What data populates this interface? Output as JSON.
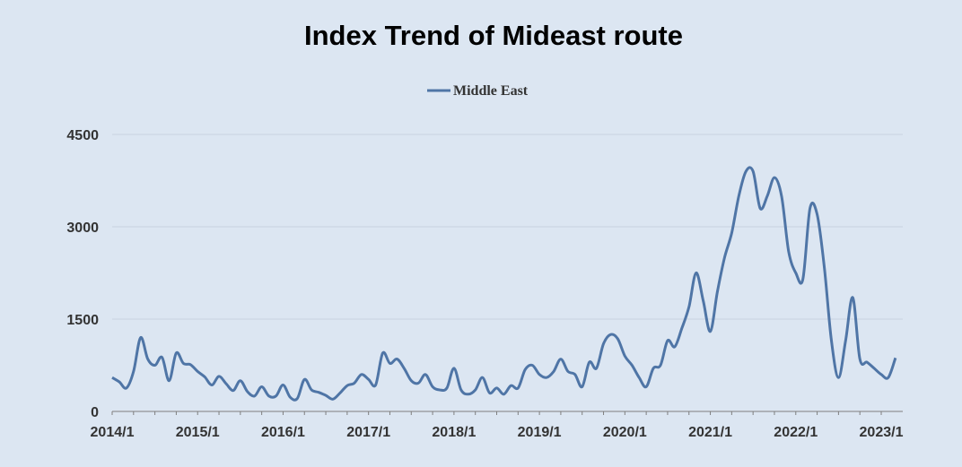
{
  "chart_data": {
    "type": "line",
    "title": "Index Trend of Mideast route",
    "xlabel": "",
    "ylabel": "",
    "ylim": [
      0,
      4500
    ],
    "y_ticks": [
      0,
      1500,
      3000,
      4500
    ],
    "x_ticks": [
      "2014/1",
      "2015/1",
      "2016/1",
      "2017/1",
      "2018/1",
      "2019/1",
      "2020/1",
      "2021/1",
      "2022/1",
      "2023/1"
    ],
    "grid": "horizontal",
    "legend": "top-center",
    "series": [
      {
        "name": "Middle East",
        "color": "#4f75a6",
        "x": [
          "2014-01",
          "2014-02",
          "2014-03",
          "2014-04",
          "2014-05",
          "2014-06",
          "2014-07",
          "2014-08",
          "2014-09",
          "2014-10",
          "2014-11",
          "2014-12",
          "2015-01",
          "2015-02",
          "2015-03",
          "2015-04",
          "2015-05",
          "2015-06",
          "2015-07",
          "2015-08",
          "2015-09",
          "2015-10",
          "2015-11",
          "2015-12",
          "2016-01",
          "2016-02",
          "2016-03",
          "2016-04",
          "2016-05",
          "2016-06",
          "2016-07",
          "2016-08",
          "2016-09",
          "2016-10",
          "2016-11",
          "2016-12",
          "2017-01",
          "2017-02",
          "2017-03",
          "2017-04",
          "2017-05",
          "2017-06",
          "2017-07",
          "2017-08",
          "2017-09",
          "2017-10",
          "2017-11",
          "2017-12",
          "2018-01",
          "2018-02",
          "2018-03",
          "2018-04",
          "2018-05",
          "2018-06",
          "2018-07",
          "2018-08",
          "2018-09",
          "2018-10",
          "2018-11",
          "2018-12",
          "2019-01",
          "2019-02",
          "2019-03",
          "2019-04",
          "2019-05",
          "2019-06",
          "2019-07",
          "2019-08",
          "2019-09",
          "2019-10",
          "2019-11",
          "2019-12",
          "2020-01",
          "2020-02",
          "2020-03",
          "2020-04",
          "2020-05",
          "2020-06",
          "2020-07",
          "2020-08",
          "2020-09",
          "2020-10",
          "2020-11",
          "2020-12",
          "2021-01",
          "2021-02",
          "2021-03",
          "2021-04",
          "2021-05",
          "2021-06",
          "2021-07",
          "2021-08",
          "2021-09",
          "2021-10",
          "2021-11",
          "2021-12",
          "2022-01",
          "2022-02",
          "2022-03",
          "2022-04",
          "2022-05",
          "2022-06",
          "2022-07",
          "2022-08",
          "2022-09",
          "2022-10",
          "2022-11",
          "2022-12",
          "2023-01",
          "2023-02",
          "2023-03"
        ],
        "values": [
          550,
          480,
          380,
          650,
          1200,
          850,
          750,
          880,
          500,
          950,
          780,
          760,
          650,
          560,
          430,
          570,
          450,
          340,
          500,
          320,
          250,
          400,
          250,
          250,
          430,
          230,
          210,
          520,
          350,
          310,
          260,
          200,
          300,
          420,
          460,
          600,
          520,
          430,
          950,
          780,
          850,
          700,
          500,
          460,
          600,
          400,
          350,
          380,
          700,
          350,
          280,
          350,
          550,
          300,
          380,
          280,
          420,
          380,
          680,
          750,
          600,
          550,
          650,
          850,
          650,
          600,
          400,
          800,
          700,
          1100,
          1250,
          1180,
          900,
          750,
          550,
          400,
          700,
          750,
          1150,
          1050,
          1350,
          1700,
          2250,
          1800,
          1300,
          1950,
          2500,
          2900,
          3500,
          3900,
          3900,
          3300,
          3500,
          3800,
          3500,
          2600,
          2250,
          2150,
          3300,
          3200,
          2350,
          1150,
          550,
          1150,
          1850,
          850,
          800,
          700,
          600,
          550,
          870
        ]
      }
    ]
  }
}
